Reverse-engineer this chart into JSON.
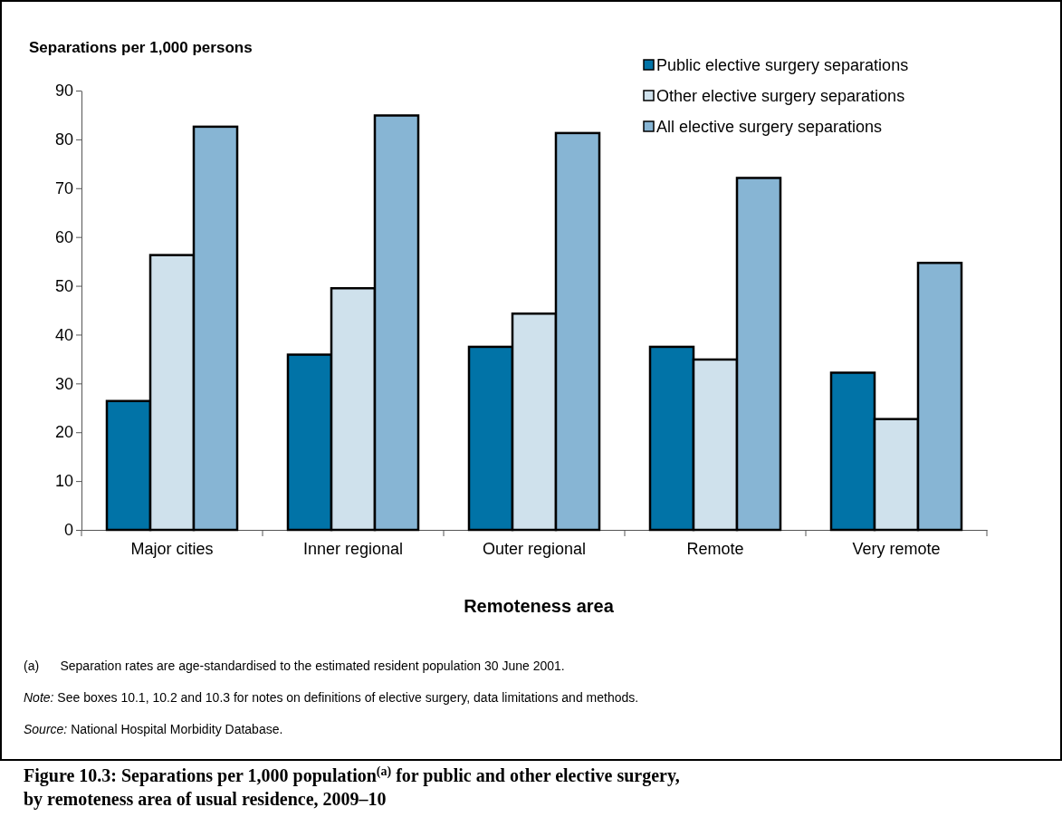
{
  "chart_data": {
    "type": "bar",
    "title": "Figure 10.3: Separations per 1,000 population$^{(a)}$ for public and other elective surgery, by remoteness area of usual residence, 2009–10",
    "ylabel": "Separations per 1,000 persons",
    "xlabel": "Remoteness area",
    "categories": [
      "Major cities",
      "Inner regional",
      "Outer regional",
      "Remote",
      "Very remote"
    ],
    "series": [
      {
        "name": "Public elective surgery separations",
        "color": "#0173a7",
        "values": [
          26.4,
          35.9,
          37.5,
          37.5,
          32.2
        ]
      },
      {
        "name": "Other elective surgery separations",
        "color": "#cfe1ec",
        "values": [
          56.3,
          49.5,
          44.3,
          34.9,
          22.7
        ]
      },
      {
        "name": "All elective surgery separations",
        "color": "#87b5d4",
        "values": [
          82.6,
          84.9,
          81.3,
          72.1,
          54.7
        ]
      }
    ],
    "ylim": [
      0,
      90
    ],
    "yticks": [
      0,
      10,
      20,
      30,
      40,
      50,
      60,
      70,
      80,
      90
    ],
    "grid": false,
    "legend": "top right",
    "annotations": [
      "(a)      Separation rates are age-standardised to the estimated resident population 30 June 2001.",
      "Note: See boxes 10.1, 10.2 and 10.3 for notes on definitions of elective surgery, data limitations and methods.",
      "Source: National Hospital Morbidity Database."
    ]
  }
}
